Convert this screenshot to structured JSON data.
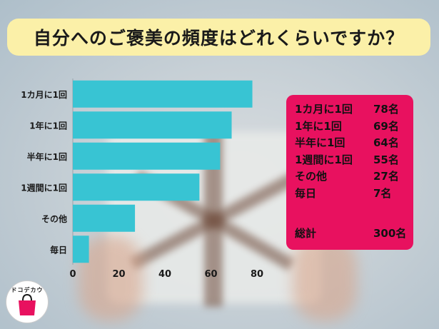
{
  "title": "自分へのご褒美の頻度はどれくらいですか？",
  "chart_data": {
    "type": "bar",
    "orientation": "horizontal",
    "categories": [
      "1カ月に1回",
      "1年に1回",
      "半年に1回",
      "1週間に1回",
      "その他",
      "毎日"
    ],
    "values": [
      78,
      69,
      64,
      55,
      27,
      7
    ],
    "x_ticks": [
      0,
      20,
      40,
      60,
      80
    ],
    "xlim": [
      0,
      80
    ],
    "bar_color": "#38c4d3",
    "grid": false
  },
  "legend": {
    "rows": [
      {
        "label": "1カ月に1回",
        "count": "78名"
      },
      {
        "label": "1年に1回",
        "count": "69名"
      },
      {
        "label": "半年に1回",
        "count": "64名"
      },
      {
        "label": "1週間に1回",
        "count": "55名"
      },
      {
        "label": "その他",
        "count": "27名"
      },
      {
        "label": "毎日",
        "count": "7名"
      }
    ],
    "total_label": "総計",
    "total_count": "300名",
    "background": "#e8115f"
  },
  "logo": {
    "text": "ドコデカウ",
    "icon": "shopping-bag-icon"
  }
}
